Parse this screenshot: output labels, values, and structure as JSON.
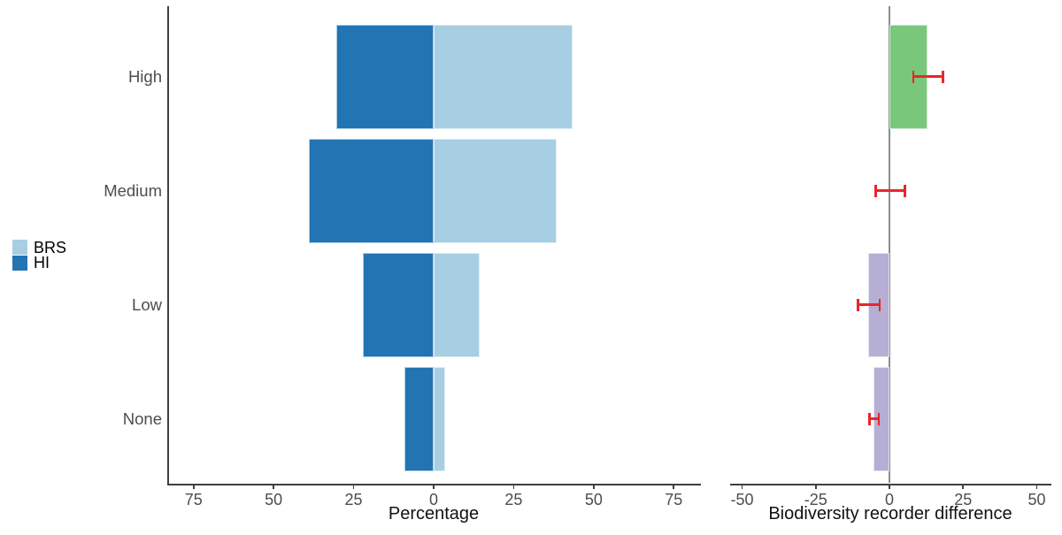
{
  "figure": {
    "background": "#ffffff",
    "legend": {
      "items": [
        {
          "label": "BRS",
          "color": "#a7cee2"
        },
        {
          "label": "HI",
          "color": "#2274b2"
        }
      ]
    }
  },
  "chart_data": [
    {
      "type": "bar",
      "panel": "left",
      "orientation": "diverging-horizontal-pyramid",
      "categories": [
        "High",
        "Medium",
        "Low",
        "None"
      ],
      "series": [
        {
          "name": "HI",
          "direction": "left",
          "color": "#2274b2",
          "values": [
            30.5,
            39,
            22,
            9
          ]
        },
        {
          "name": "BRS",
          "direction": "right",
          "color": "#a7cee2",
          "values": [
            43.5,
            38.5,
            14.5,
            3.5
          ]
        }
      ],
      "xlabel": "Percentage",
      "xticks": [
        -75,
        -50,
        -25,
        0,
        25,
        50,
        75
      ],
      "xtick_labels": [
        "75",
        "50",
        "25",
        "0",
        "25",
        "50",
        "75"
      ],
      "xlim": [
        -83,
        83.5
      ],
      "grid": false,
      "legend_position": "left-middle"
    },
    {
      "type": "bar",
      "panel": "right",
      "orientation": "horizontal",
      "categories": [
        "High",
        "Medium",
        "Low",
        "None"
      ],
      "values": [
        12.9,
        -0.3,
        -7.3,
        -5.3
      ],
      "bar_colors": [
        "#79c77b",
        "#b7aed3",
        "#b7aed3",
        "#b7aed3"
      ],
      "error_low": [
        7.8,
        -5.1,
        -11.1,
        -7.2
      ],
      "error_high": [
        18.6,
        5.7,
        -3.0,
        -3.3
      ],
      "error_color": "#e8262b",
      "xlabel": "Biodiversity recorder difference",
      "xticks": [
        -50,
        -25,
        0,
        25,
        50
      ],
      "xtick_labels": [
        "-50",
        "-25",
        "0",
        "25",
        "50"
      ],
      "xlim": [
        -54.5,
        55
      ],
      "zero_line": true,
      "zero_line_color": "#8c8c8c",
      "grid": false
    }
  ]
}
